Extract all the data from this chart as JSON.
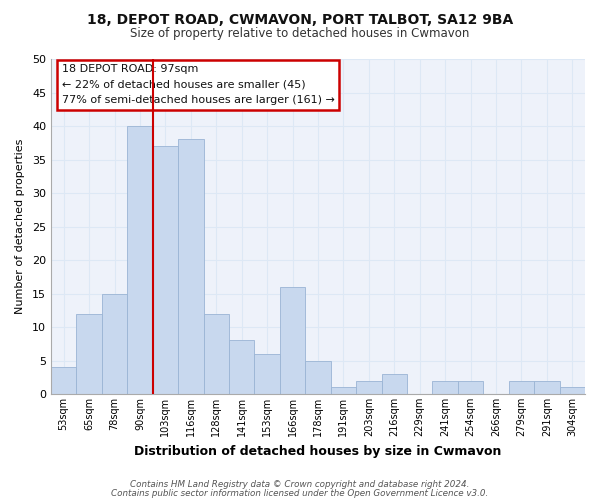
{
  "title_line1": "18, DEPOT ROAD, CWMAVON, PORT TALBOT, SA12 9BA",
  "title_line2": "Size of property relative to detached houses in Cwmavon",
  "xlabel": "Distribution of detached houses by size in Cwmavon",
  "ylabel": "Number of detached properties",
  "bar_labels": [
    "53sqm",
    "65sqm",
    "78sqm",
    "90sqm",
    "103sqm",
    "116sqm",
    "128sqm",
    "141sqm",
    "153sqm",
    "166sqm",
    "178sqm",
    "191sqm",
    "203sqm",
    "216sqm",
    "229sqm",
    "241sqm",
    "254sqm",
    "266sqm",
    "279sqm",
    "291sqm",
    "304sqm"
  ],
  "bar_heights": [
    4,
    12,
    15,
    40,
    37,
    38,
    12,
    8,
    6,
    16,
    5,
    1,
    2,
    3,
    0,
    2,
    2,
    0,
    2,
    2,
    1
  ],
  "bar_color": "#c8d8ee",
  "bar_edge_color": "#9ab4d4",
  "vline_x": 3.5,
  "vline_color": "#cc0000",
  "ylim": [
    0,
    50
  ],
  "yticks": [
    0,
    5,
    10,
    15,
    20,
    25,
    30,
    35,
    40,
    45,
    50
  ],
  "annotation_title": "18 DEPOT ROAD: 97sqm",
  "annotation_line1": "← 22% of detached houses are smaller (45)",
  "annotation_line2": "77% of semi-detached houses are larger (161) →",
  "annotation_box_color": "#ffffff",
  "annotation_box_edge": "#cc0000",
  "footer_line1": "Contains HM Land Registry data © Crown copyright and database right 2024.",
  "footer_line2": "Contains public sector information licensed under the Open Government Licence v3.0.",
  "grid_color": "#dde8f5",
  "background_color": "#ffffff",
  "plot_bg_color": "#eef2fa"
}
